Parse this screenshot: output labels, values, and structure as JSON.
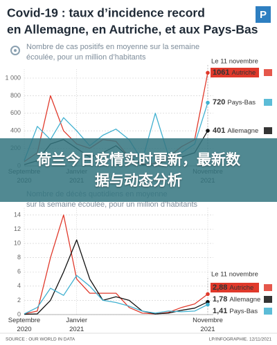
{
  "title_lines": [
    "Covid-19 : taux d’incidence record",
    "en Allemagne, en Autriche, et aux Pays-Bas"
  ],
  "logo": "P",
  "banner": "荷兰今日疫情实时更新，最新数据与动态分析",
  "source": "SOURCE : OUR WORLD IN DATA",
  "credit": "LP/INFOGRAPHIE. 12/11/2021",
  "chart_data": [
    {
      "type": "line",
      "subtitle": [
        "Nombre de cas positifs en moyenne sur la semaine",
        "écoulée, pour un million d’habitants"
      ],
      "annotation": "Le 11 novembre",
      "categories": [
        "Septembre\n2020",
        null,
        null,
        null,
        "Janvier\n2021",
        null,
        null,
        null,
        null,
        null,
        null,
        null,
        null,
        null,
        "Novembre\n2021"
      ],
      "ylim": [
        0,
        1100
      ],
      "yticks": [
        0,
        200,
        400,
        600,
        800,
        {
          "value": 1000,
          "label": "1 000"
        }
      ],
      "grid": true,
      "series": [
        {
          "name": "Autriche",
          "color": "#e0392b",
          "values": [
            50,
            150,
            800,
            400,
            250,
            200,
            300,
            280,
            100,
            20,
            30,
            100,
            220,
            300,
            1061
          ]
        },
        {
          "name": "Pays-Bas",
          "color": "#3fb0d0",
          "values": [
            60,
            450,
            300,
            550,
            400,
            230,
            350,
            420,
            300,
            60,
            600,
            120,
            150,
            250,
            720
          ]
        },
        {
          "name": "Allemagne",
          "color": "#111111",
          "values": [
            15,
            60,
            250,
            300,
            200,
            100,
            150,
            230,
            100,
            10,
            10,
            80,
            100,
            150,
            401
          ]
        }
      ]
    },
    {
      "type": "line",
      "subtitle": [
        "Nombre de décès quotidiens en moyenne",
        "sur la semaine écoulée, pour un million d’habitants"
      ],
      "annotation": "Le 11 novembre",
      "categories": [
        "Septembre\n2020",
        null,
        null,
        null,
        "Janvier\n2021",
        null,
        null,
        null,
        null,
        null,
        null,
        null,
        null,
        null,
        "Novembre\n2021"
      ],
      "ylim": [
        0,
        15
      ],
      "yticks": [
        0,
        2,
        4,
        6,
        8,
        10,
        12,
        14
      ],
      "grid": true,
      "series": [
        {
          "name": "Autriche",
          "color": "#e0392b",
          "values": [
            0.1,
            0.5,
            8,
            14,
            5,
            3,
            3,
            3,
            1,
            0.2,
            0.1,
            0.3,
            1,
            1.5,
            2.88
          ],
          "value_labels": [
            null,
            null,
            null,
            null,
            null,
            null,
            null,
            null,
            null,
            null,
            null,
            null,
            null,
            null,
            "2,88"
          ]
        },
        {
          "name": "Allemagne",
          "color": "#111111",
          "values": [
            0.05,
            0.1,
            2,
            6,
            10.5,
            5,
            2,
            2.5,
            2,
            0.5,
            0.1,
            0.2,
            0.6,
            0.9,
            1.78
          ],
          "value_labels": [
            null,
            null,
            null,
            null,
            null,
            null,
            null,
            null,
            null,
            null,
            null,
            null,
            null,
            null,
            "1,78"
          ]
        },
        {
          "name": "Pays-Bas",
          "color": "#3fb0d0",
          "values": [
            0.1,
            1,
            3.7,
            2.7,
            5.5,
            4,
            2,
            1.7,
            1.2,
            0.5,
            0.2,
            0.5,
            0.4,
            0.5,
            1.41
          ],
          "value_labels": [
            null,
            null,
            null,
            null,
            null,
            null,
            null,
            null,
            null,
            null,
            null,
            null,
            null,
            null,
            "1,41"
          ]
        }
      ]
    }
  ]
}
